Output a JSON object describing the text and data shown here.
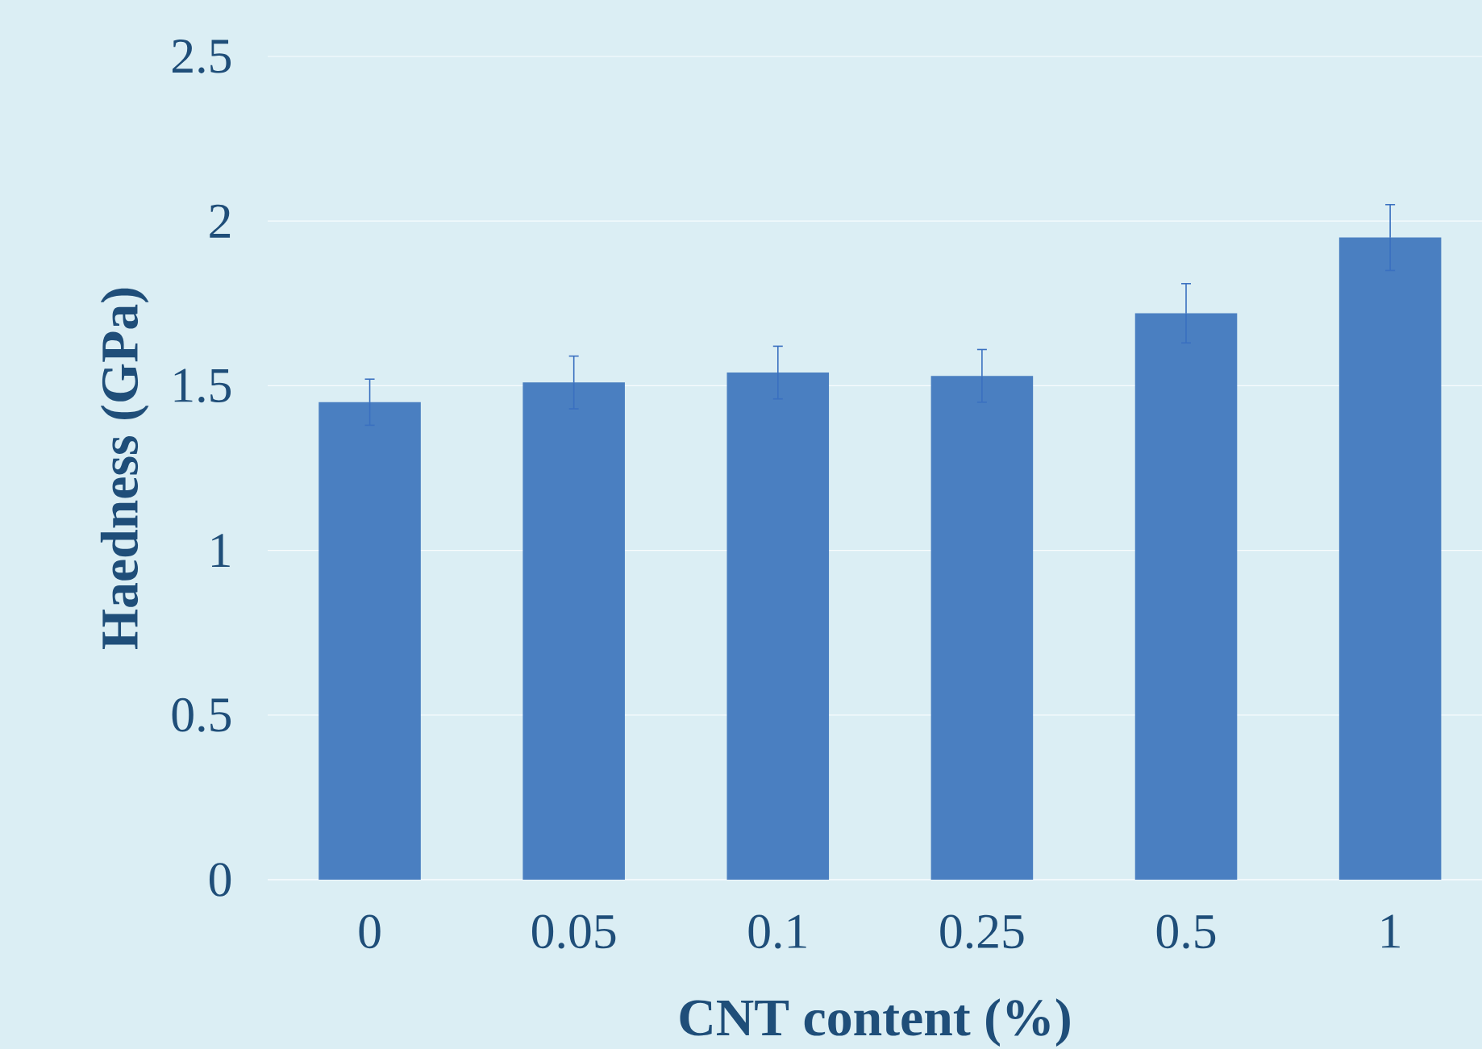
{
  "chart_data": {
    "type": "bar",
    "xlabel": "CNT content (%)",
    "ylabel": "Haedness (GPa)",
    "categories": [
      "0",
      "0.05",
      "0.1",
      "0.25",
      "0.5",
      "1"
    ],
    "values": [
      1.45,
      1.51,
      1.54,
      1.53,
      1.72,
      1.95
    ],
    "errors": [
      0.07,
      0.08,
      0.08,
      0.08,
      0.09,
      0.1
    ],
    "color": "#4a7fc1",
    "ylim": [
      0,
      2.5
    ],
    "yticks": [
      0,
      0.5,
      1,
      1.5,
      2,
      2.5
    ],
    "grid": "y"
  }
}
